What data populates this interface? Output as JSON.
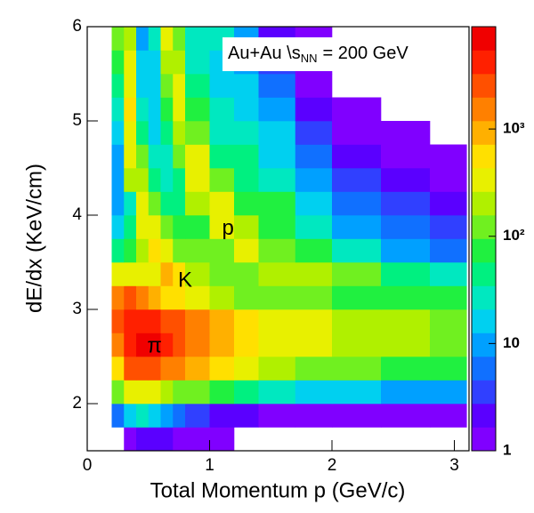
{
  "chart_data": {
    "type": "heatmap",
    "xlabel": "Total Momentum p (GeV/c)",
    "ylabel": "dE/dx (KeV/cm)",
    "annotation": {
      "prefix": "Au+Au \\",
      "symbol": "s",
      "sub": "NN",
      "suffix": "= 200 GeV"
    },
    "band_labels": [
      "π",
      "K",
      "p"
    ],
    "xlim": [
      0,
      3.12
    ],
    "xticks": [
      0,
      1,
      2,
      3
    ],
    "ylim": [
      1.5,
      6
    ],
    "yticks": [
      2,
      3,
      4,
      5,
      6
    ],
    "zlim": [
      1,
      9000
    ],
    "zlog": true,
    "zticks": [
      1,
      10,
      {
        "value": 100,
        "label": "10²"
      },
      {
        "value": 1000,
        "label": "10³"
      }
    ],
    "colorscale": [
      "#8000ff",
      "#5a00ff",
      "#3040ff",
      "#1070ff",
      "#00a0ff",
      "#00d0f0",
      "#00e8c0",
      "#00f080",
      "#20f040",
      "#70f020",
      "#b0f000",
      "#e8f000",
      "#ffe000",
      "#ffb000",
      "#ff8000",
      "#ff5000",
      "#ff2000",
      "#f00000"
    ],
    "xbins": [
      0.2,
      0.3,
      0.4,
      0.5,
      0.6,
      0.7,
      0.8,
      1.0,
      1.2,
      1.4,
      1.7,
      2.0,
      2.4,
      2.8,
      3.1
    ],
    "ybins": [
      1.5,
      1.75,
      2.0,
      2.25,
      2.5,
      2.75,
      3.0,
      3.25,
      3.5,
      3.75,
      4.0,
      4.25,
      4.5,
      4.75,
      5.0,
      5.25,
      5.5,
      5.75,
      6.0
    ],
    "z": [
      [
        null,
        1,
        2,
        2,
        2,
        1,
        1,
        1,
        null,
        null,
        null,
        null,
        null,
        null
      ],
      [
        5,
        20,
        30,
        20,
        10,
        5,
        3,
        2,
        2,
        1,
        1,
        1,
        1,
        1
      ],
      [
        100,
        300,
        400,
        300,
        200,
        150,
        100,
        60,
        40,
        30,
        20,
        15,
        10,
        8
      ],
      [
        600,
        2000,
        3000,
        2500,
        1800,
        1200,
        800,
        500,
        300,
        200,
        150,
        100,
        80,
        60
      ],
      [
        1500,
        5000,
        7000,
        6000,
        4500,
        3000,
        1800,
        1000,
        600,
        400,
        300,
        250,
        200,
        150
      ],
      [
        2500,
        5000,
        5000,
        4000,
        3000,
        2000,
        1300,
        800,
        500,
        350,
        300,
        250,
        200,
        150
      ],
      [
        1500,
        2500,
        1500,
        800,
        700,
        600,
        350,
        250,
        150,
        120,
        100,
        90,
        80,
        60
      ],
      [
        300,
        400,
        300,
        400,
        800,
        500,
        200,
        150,
        150,
        250,
        200,
        100,
        50,
        30
      ],
      [
        50,
        80,
        200,
        500,
        300,
        150,
        100,
        150,
        300,
        150,
        60,
        30,
        10,
        5
      ],
      [
        20,
        40,
        400,
        300,
        100,
        80,
        80,
        400,
        200,
        80,
        30,
        10,
        5,
        3
      ],
      [
        10,
        30,
        400,
        100,
        50,
        50,
        200,
        300,
        60,
        60,
        20,
        5,
        3,
        2
      ],
      [
        10,
        200,
        200,
        50,
        30,
        50,
        400,
        100,
        40,
        30,
        10,
        3,
        2,
        1
      ],
      [
        10,
        300,
        100,
        30,
        30,
        100,
        300,
        50,
        40,
        20,
        5,
        2,
        1,
        1
      ],
      [
        20,
        400,
        50,
        20,
        40,
        200,
        100,
        30,
        30,
        15,
        3,
        1,
        1,
        null
      ],
      [
        30,
        500,
        30,
        20,
        60,
        300,
        60,
        30,
        20,
        8,
        2,
        1,
        null,
        null
      ],
      [
        40,
        400,
        20,
        20,
        100,
        300,
        40,
        20,
        15,
        5,
        1,
        null,
        null,
        null
      ],
      [
        60,
        300,
        15,
        20,
        200,
        200,
        30,
        20,
        10,
        3,
        1,
        null,
        null,
        null
      ],
      [
        100,
        200,
        10,
        30,
        300,
        150,
        30,
        30,
        8,
        2,
        1,
        null,
        null,
        null
      ]
    ]
  }
}
